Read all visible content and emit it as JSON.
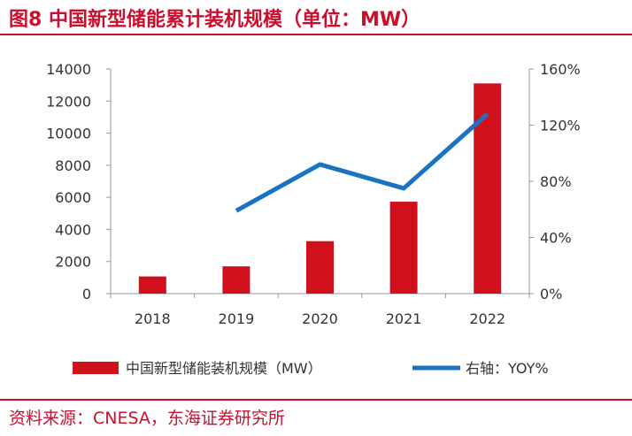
{
  "title": "图8  中国新型储能累计装机规模（单位：MW）",
  "source": "资料来源：CNESA，东海证券研究所",
  "colors": {
    "accent": "#c8102e",
    "bar": "#d0111b",
    "line": "#1a73c0",
    "axis": "#999999"
  },
  "chart_data": {
    "type": "bar",
    "categories": [
      "2018",
      "2019",
      "2020",
      "2021",
      "2022"
    ],
    "series": [
      {
        "name": "中国新型储能装机规模（MW）",
        "kind": "bar",
        "axis": "left",
        "values": [
          1070,
          1700,
          3270,
          5730,
          13100
        ]
      },
      {
        "name": "右轴：YOY%",
        "kind": "line",
        "axis": "right",
        "values": [
          null,
          59,
          92,
          75,
          128
        ]
      }
    ],
    "y_left": {
      "min": 0,
      "max": 14000,
      "ticks": [
        "0",
        "2000",
        "4000",
        "6000",
        "8000",
        "10000",
        "12000",
        "14000"
      ]
    },
    "y_right": {
      "min": 0,
      "max": 160,
      "ticks": [
        "0%",
        "40%",
        "80%",
        "120%",
        "160%"
      ]
    },
    "legend": [
      "中国新型储能装机规模（MW）",
      "右轴：YOY%"
    ],
    "legend_position": "bottom"
  }
}
